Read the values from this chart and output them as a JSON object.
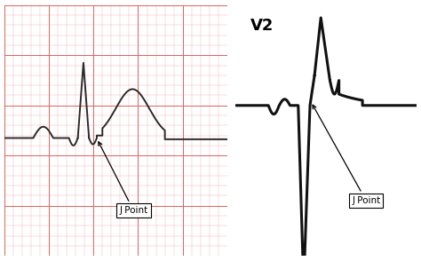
{
  "fig_width": 4.74,
  "fig_height": 2.94,
  "dpi": 100,
  "background_color": "#ffffff",
  "left_panel": {
    "grid_minor_color": "#f0a0a0",
    "grid_major_color": "#e06060",
    "grid_bg": "#fce8e8",
    "ekg_color": "#2a2a2a",
    "ekg_lw": 1.4,
    "j_point_label": "J Point"
  },
  "right_panel": {
    "bg_color": "#ffffff",
    "ekg_color": "#111111",
    "ekg_lw": 2.2,
    "v2_label": "V2",
    "j_point_label": "J Point"
  }
}
